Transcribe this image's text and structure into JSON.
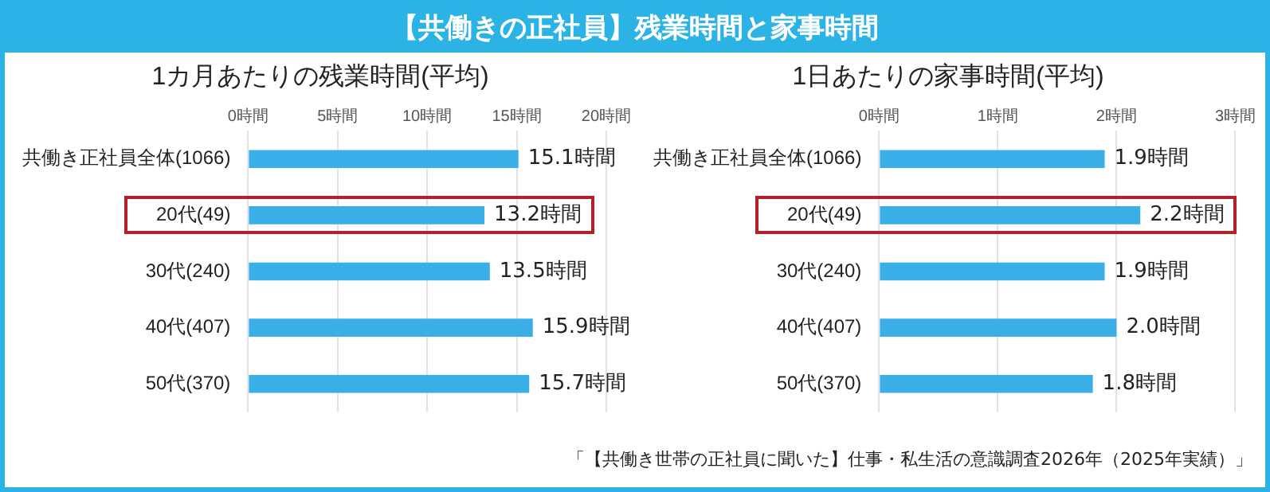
{
  "chart_data": [
    {
      "type": "other",
      "title": "【共働きの正社員】残業時間と家事時間",
      "annotations": [
        "「【共働き世帯の正社員に聞いた】仕事・私生活の意識調査2026年（2025年実績）」"
      ]
    },
    {
      "type": "bar",
      "orientation": "horizontal",
      "title": "1カ月あたりの残業時間(平均)",
      "categories": [
        "共働き正社員全体(1066)",
        "20代(49)",
        "30代(240)",
        "40代(407)",
        "50代(370)"
      ],
      "values": [
        15.1,
        13.2,
        13.5,
        15.9,
        15.7
      ],
      "value_labels": [
        "15.1時間",
        "13.2時間",
        "13.5時間",
        "15.9時間",
        "15.7時間"
      ],
      "color": "#3aaee6",
      "xlim": [
        0,
        20
      ],
      "xticks": [
        {
          "value": 0,
          "label": "0時間"
        },
        {
          "value": 5,
          "label": "5時間"
        },
        {
          "value": 10,
          "label": "10時間"
        },
        {
          "value": 15,
          "label": "15時間"
        },
        {
          "value": 20,
          "label": "20時間"
        }
      ],
      "grid": "x"
    },
    {
      "type": "bar",
      "orientation": "horizontal",
      "title": "1日あたりの家事時間(平均)",
      "categories": [
        "共働き正社員全体(1066)",
        "20代(49)",
        "30代(240)",
        "40代(407)",
        "50代(370)"
      ],
      "values": [
        1.9,
        2.2,
        1.9,
        2.0,
        1.8
      ],
      "value_labels": [
        "1.9時間",
        "2.2時間",
        "1.9時間",
        "2.0時間",
        "1.8時間"
      ],
      "color": "#3aaee6",
      "xlim": [
        0,
        3
      ],
      "xticks": [
        {
          "value": 0,
          "label": "0時間"
        },
        {
          "value": 1,
          "label": "1時間"
        },
        {
          "value": 2,
          "label": "2時間"
        },
        {
          "value": 3,
          "label": "3時間"
        }
      ],
      "grid": "x"
    }
  ]
}
